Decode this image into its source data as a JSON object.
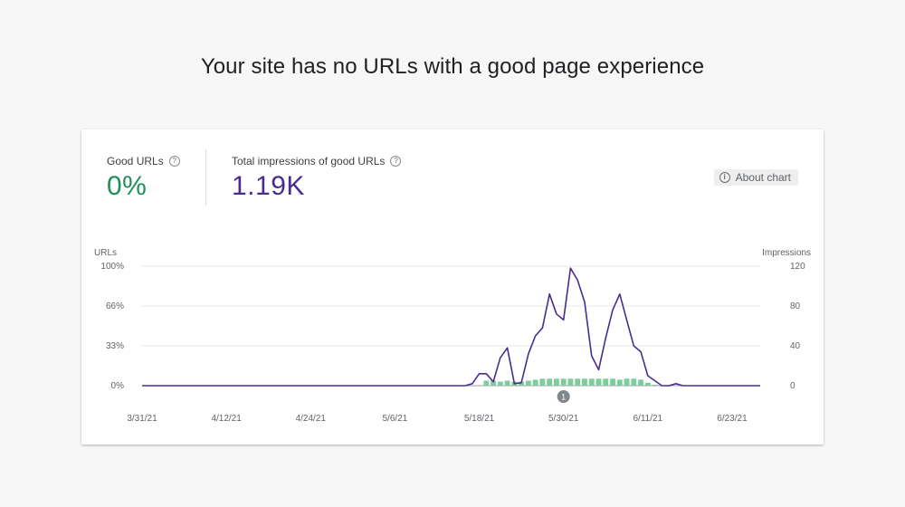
{
  "page": {
    "headline": "Your site has no URLs with a good page experience"
  },
  "metrics": [
    {
      "label": "Good URLs",
      "value": "0%",
      "color": "#1e8e5a"
    },
    {
      "label": "Total impressions of good URLs",
      "value": "1.19K",
      "color": "#4a2c91"
    }
  ],
  "about_chart_label": "About chart",
  "colors": {
    "impressions_line": "#4a2c91",
    "good_urls_bar": "#7ccc9c",
    "annotation": "#80868b"
  },
  "chart_data": {
    "type": "line",
    "left_axis": {
      "label": "URLs",
      "ticks": [
        "100%",
        "66%",
        "33%",
        "0%"
      ],
      "ylim": [
        0,
        100
      ]
    },
    "right_axis": {
      "label": "Impressions",
      "ticks": [
        "120",
        "80",
        "40",
        "0"
      ],
      "ylim": [
        0,
        120
      ]
    },
    "x_ticks": [
      "3/31/21",
      "4/12/21",
      "4/24/21",
      "5/6/21",
      "5/18/21",
      "5/30/21",
      "6/11/21",
      "6/23/21"
    ],
    "x_range": [
      "3/31/21",
      "6/27/21"
    ],
    "grid": true,
    "annotation": {
      "label": "1",
      "date": "5/30/21"
    },
    "impressions": [
      [
        "3/31/21",
        0
      ],
      [
        "4/12/21",
        0
      ],
      [
        "4/24/21",
        0
      ],
      [
        "5/6/21",
        0
      ],
      [
        "5/16/21",
        0
      ],
      [
        "5/17/21",
        2
      ],
      [
        "5/18/21",
        12
      ],
      [
        "5/19/21",
        12
      ],
      [
        "5/20/21",
        4
      ],
      [
        "5/21/21",
        28
      ],
      [
        "5/22/21",
        38
      ],
      [
        "5/23/21",
        2
      ],
      [
        "5/24/21",
        3
      ],
      [
        "5/25/21",
        32
      ],
      [
        "5/26/21",
        50
      ],
      [
        "5/27/21",
        58
      ],
      [
        "5/28/21",
        92
      ],
      [
        "5/29/21",
        72
      ],
      [
        "5/30/21",
        66
      ],
      [
        "5/31/21",
        118
      ],
      [
        "6/1/21",
        106
      ],
      [
        "6/2/21",
        84
      ],
      [
        "6/3/21",
        30
      ],
      [
        "6/4/21",
        16
      ],
      [
        "6/5/21",
        48
      ],
      [
        "6/6/21",
        76
      ],
      [
        "6/7/21",
        92
      ],
      [
        "6/8/21",
        66
      ],
      [
        "6/9/21",
        40
      ],
      [
        "6/10/21",
        34
      ],
      [
        "6/11/21",
        10
      ],
      [
        "6/12/21",
        5
      ],
      [
        "6/13/21",
        0
      ],
      [
        "6/14/21",
        0
      ],
      [
        "6/15/21",
        2
      ],
      [
        "6/16/21",
        0
      ],
      [
        "6/23/21",
        0
      ],
      [
        "6/27/21",
        0
      ]
    ],
    "good_url_impressions_bars": [
      [
        "5/19/21",
        5
      ],
      [
        "5/20/21",
        5
      ],
      [
        "5/21/21",
        4
      ],
      [
        "5/22/21",
        5
      ],
      [
        "5/23/21",
        4
      ],
      [
        "5/24/21",
        4
      ],
      [
        "5/25/21",
        5
      ],
      [
        "5/26/21",
        6
      ],
      [
        "5/27/21",
        7
      ],
      [
        "5/28/21",
        7
      ],
      [
        "5/29/21",
        7
      ],
      [
        "5/30/21",
        7
      ],
      [
        "5/31/21",
        7
      ],
      [
        "6/1/21",
        7
      ],
      [
        "6/2/21",
        7
      ],
      [
        "6/3/21",
        7
      ],
      [
        "6/4/21",
        7
      ],
      [
        "6/5/21",
        7
      ],
      [
        "6/6/21",
        7
      ],
      [
        "6/7/21",
        6
      ],
      [
        "6/8/21",
        7
      ],
      [
        "6/9/21",
        7
      ],
      [
        "6/10/21",
        6
      ],
      [
        "6/11/21",
        3
      ],
      [
        "6/12/21",
        1
      ]
    ]
  }
}
